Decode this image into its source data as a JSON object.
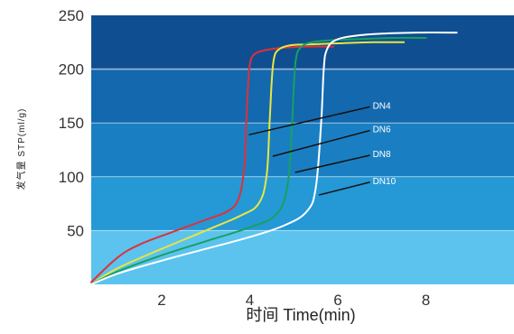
{
  "chart_data": {
    "type": "line",
    "xlabel": "时间 Time(min)",
    "ylabel": "发气量 STP(ml/g)",
    "xlim": [
      0.4,
      10
    ],
    "ylim": [
      0,
      250
    ],
    "x_ticks": [
      "2",
      "4",
      "6",
      "8"
    ],
    "x_tick_values": [
      2,
      4,
      6,
      8
    ],
    "y_ticks": [
      "50",
      "100",
      "150",
      "200",
      "250"
    ],
    "y_tick_values": [
      50,
      100,
      150,
      200,
      250
    ],
    "grid": {
      "horizontal": true,
      "vertical": false
    },
    "band_colors": [
      "#5bc3ee",
      "#2598d6",
      "#1a7fc2",
      "#1468ae",
      "#0f4f91"
    ],
    "series": [
      {
        "name": "DN4",
        "color": "#e0303a",
        "x": [
          0.4,
          1.0,
          1.5,
          2.2,
          3.0,
          3.5,
          3.75,
          3.88,
          3.92,
          3.97,
          4.02,
          4.15,
          4.4,
          4.8,
          5.3,
          5.9
        ],
        "y": [
          2,
          25,
          37,
          48,
          60,
          68,
          80,
          110,
          150,
          190,
          208,
          215,
          218,
          220,
          221,
          221
        ]
      },
      {
        "name": "DN6",
        "color": "#e8e640",
        "x": [
          0.4,
          1.0,
          2.0,
          3.0,
          3.8,
          4.2,
          4.38,
          4.45,
          4.5,
          4.55,
          4.65,
          4.9,
          5.3,
          6.0,
          6.8,
          7.5
        ],
        "y": [
          0,
          15,
          33,
          50,
          64,
          75,
          100,
          150,
          190,
          210,
          218,
          222,
          223,
          224,
          225,
          225
        ]
      },
      {
        "name": "DN8",
        "color": "#18a060",
        "x": [
          0.4,
          1.0,
          2.0,
          3.0,
          4.0,
          4.6,
          4.85,
          4.95,
          5.0,
          5.05,
          5.15,
          5.4,
          5.9,
          6.5,
          7.3,
          8.0
        ],
        "y": [
          0,
          12,
          27,
          40,
          53,
          65,
          90,
          140,
          185,
          210,
          220,
          225,
          227,
          228,
          229,
          229
        ]
      },
      {
        "name": "DN10",
        "color": "#ffffff",
        "x": [
          0.4,
          1.0,
          2.0,
          3.0,
          4.0,
          4.8,
          5.3,
          5.5,
          5.62,
          5.68,
          5.75,
          5.95,
          6.4,
          7.0,
          7.8,
          8.7
        ],
        "y": [
          0,
          10,
          22,
          33,
          44,
          55,
          68,
          90,
          150,
          200,
          218,
          227,
          231,
          233,
          234,
          234
        ]
      }
    ],
    "annotations": [
      {
        "text": "DN4",
        "from": [
          3.98,
          139
        ],
        "to": [
          6.73,
          165
        ]
      },
      {
        "text": "DN6",
        "from": [
          4.52,
          119
        ],
        "to": [
          6.73,
          143
        ]
      },
      {
        "text": "DN8",
        "from": [
          5.03,
          104
        ],
        "to": [
          6.73,
          120
        ]
      },
      {
        "text": "DN10",
        "from": [
          5.57,
          83
        ],
        "to": [
          6.73,
          95
        ]
      }
    ]
  }
}
